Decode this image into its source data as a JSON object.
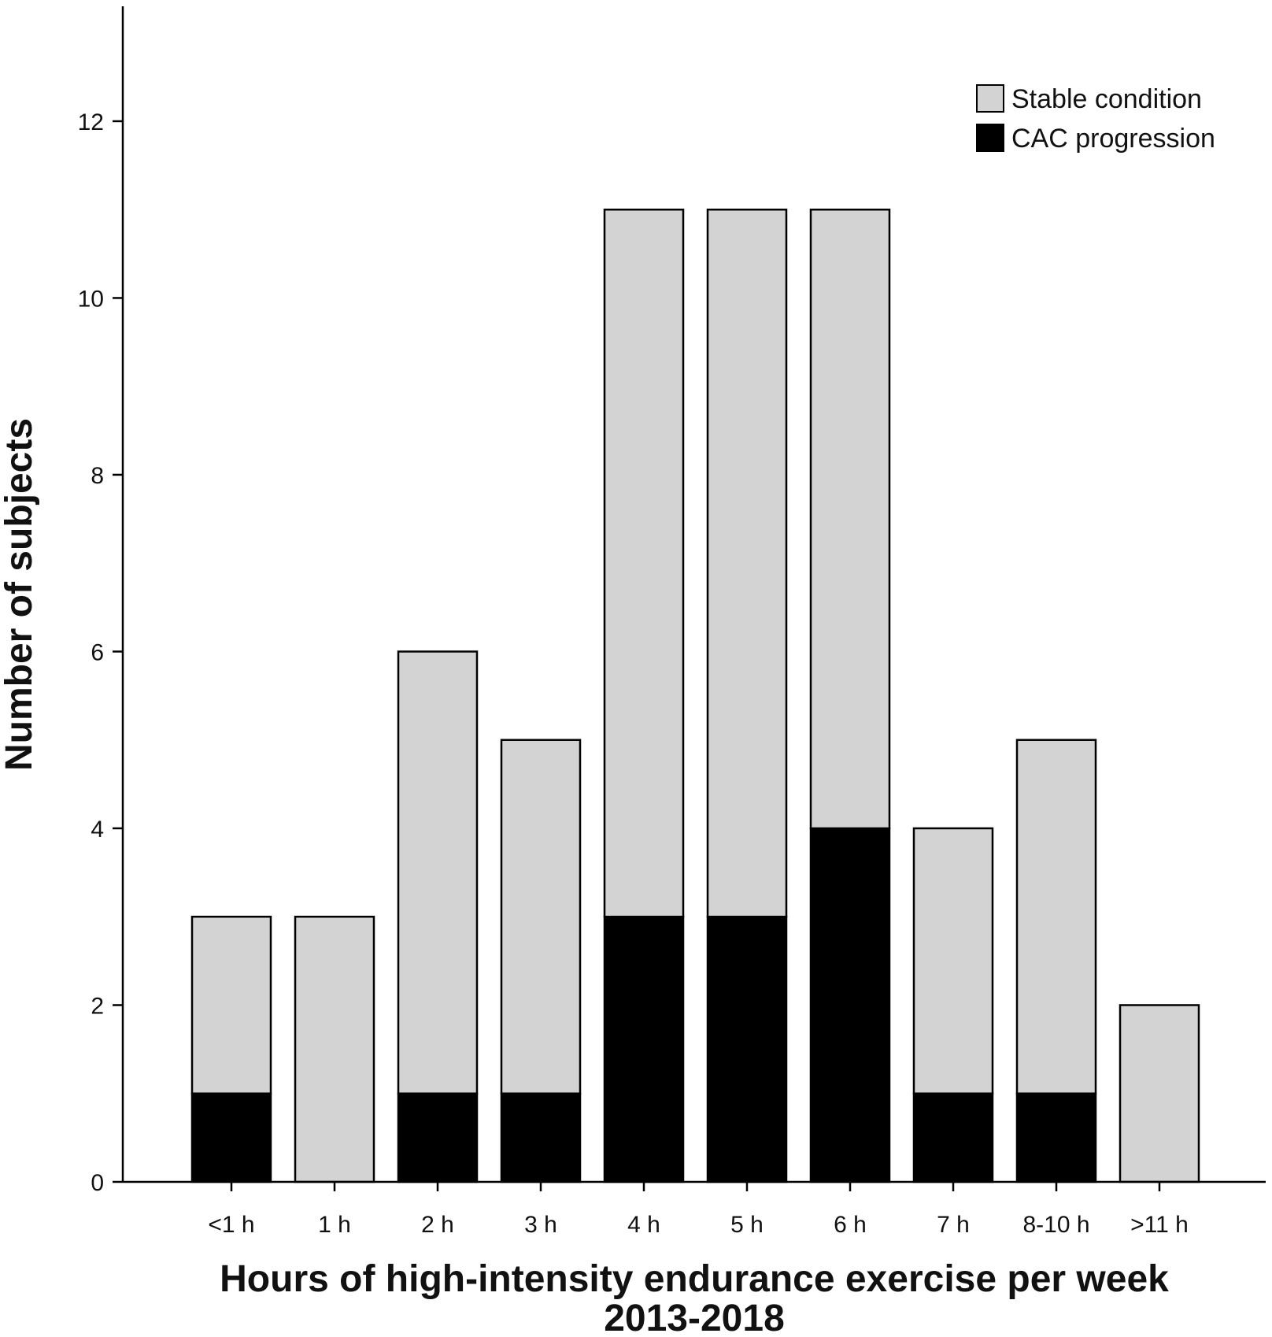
{
  "chart_data": {
    "type": "bar",
    "stacked": true,
    "categories": [
      "<1 h",
      "1 h",
      "2 h",
      "3 h",
      "4 h",
      "5 h",
      "6 h",
      "7 h",
      "8-10 h",
      ">11 h"
    ],
    "series": [
      {
        "name": "CAC progression",
        "color": "#000000",
        "values": [
          1,
          0,
          1,
          1,
          3,
          3,
          4,
          1,
          1,
          0
        ]
      },
      {
        "name": "Stable condition",
        "color": "#d3d3d3",
        "values": [
          2,
          3,
          5,
          4,
          8,
          8,
          7,
          3,
          4,
          2
        ]
      }
    ],
    "xlabel": "Hours of high-intensity endurance exercise per week",
    "xlabel_line2": "2013-2018",
    "ylabel": "Number of subjects",
    "ylim": [
      0,
      13.3
    ],
    "yticks": [
      0,
      2,
      4,
      6,
      8,
      10,
      12
    ],
    "grid": false,
    "legend_position": "top-right",
    "legend_order": [
      "Stable condition",
      "CAC progression"
    ]
  }
}
